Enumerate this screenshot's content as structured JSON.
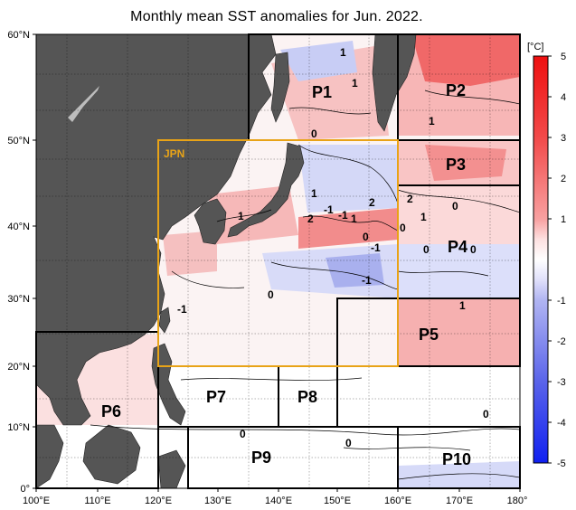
{
  "title": "Monthly mean SST anomalies for Jun. 2022.",
  "colorbar": {
    "unit": "[°C]",
    "tick_labels": [
      "5",
      "4",
      "3",
      "2",
      "1",
      "-1",
      "-2",
      "-3",
      "-4",
      "-5"
    ]
  },
  "axes": {
    "lat_labels": [
      "60°N",
      "50°N",
      "40°N",
      "30°N",
      "20°N",
      "10°N",
      "0°"
    ],
    "lon_labels": [
      "100°E",
      "110°E",
      "120°E",
      "130°E",
      "140°E",
      "150°E",
      "160°E",
      "170°E",
      "180°"
    ]
  },
  "regions": [
    {
      "name": "P1",
      "label": "P1"
    },
    {
      "name": "P2",
      "label": "P2"
    },
    {
      "name": "P3",
      "label": "P3"
    },
    {
      "name": "P4",
      "label": "P4"
    },
    {
      "name": "P5",
      "label": "P5"
    },
    {
      "name": "P6",
      "label": "P6"
    },
    {
      "name": "P7",
      "label": "P7"
    },
    {
      "name": "P8",
      "label": "P8"
    },
    {
      "name": "P9",
      "label": "P9"
    },
    {
      "name": "P10",
      "label": "P10"
    }
  ],
  "jpn_box": {
    "label": "JPN",
    "color": "#e8a317"
  },
  "contour_labels": [
    "1",
    "1",
    "0",
    "1",
    "1",
    "2",
    "-1",
    "2",
    "-1",
    "1",
    "0",
    "-1",
    "2",
    "1",
    "0",
    "-1",
    "0",
    "1",
    "0",
    "-1",
    "1",
    "0",
    "0",
    "0",
    "0",
    "0"
  ],
  "colors": {
    "land": "#555555",
    "ocean_neutral": "#ffffff",
    "warm": "#e8303a",
    "cool": "#3a4ee8"
  }
}
